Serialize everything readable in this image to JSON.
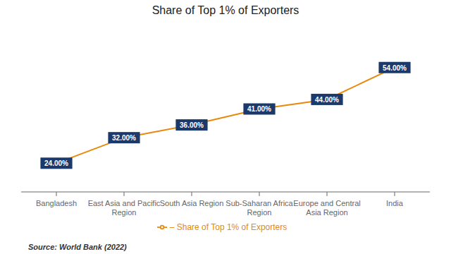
{
  "chart_data": {
    "type": "line",
    "title": "Share of Top 1% of Exporters",
    "categories": [
      "Bangladesh",
      "East Asia and Pacific\nRegion",
      "South Asia Region",
      "Sub-Saharan Africa\nRegion",
      "Europe and Central\nAsia Region",
      "India"
    ],
    "series": [
      {
        "name": "– Share of Top 1% of Exporters",
        "color": "#E8890C",
        "values": [
          24.0,
          32.0,
          36.0,
          41.0,
          44.0,
          54.0
        ],
        "value_labels": [
          "24.00%",
          "32.00%",
          "36.00%",
          "41.00%",
          "44.00%",
          "54.00%"
        ]
      }
    ],
    "ylim": [
      15,
      65
    ],
    "data_labels": true,
    "tick_labels": "x",
    "legend": "bottom",
    "marker": "circle",
    "grid": false,
    "annotations": [
      "Source: World Bank (2022)"
    ]
  }
}
